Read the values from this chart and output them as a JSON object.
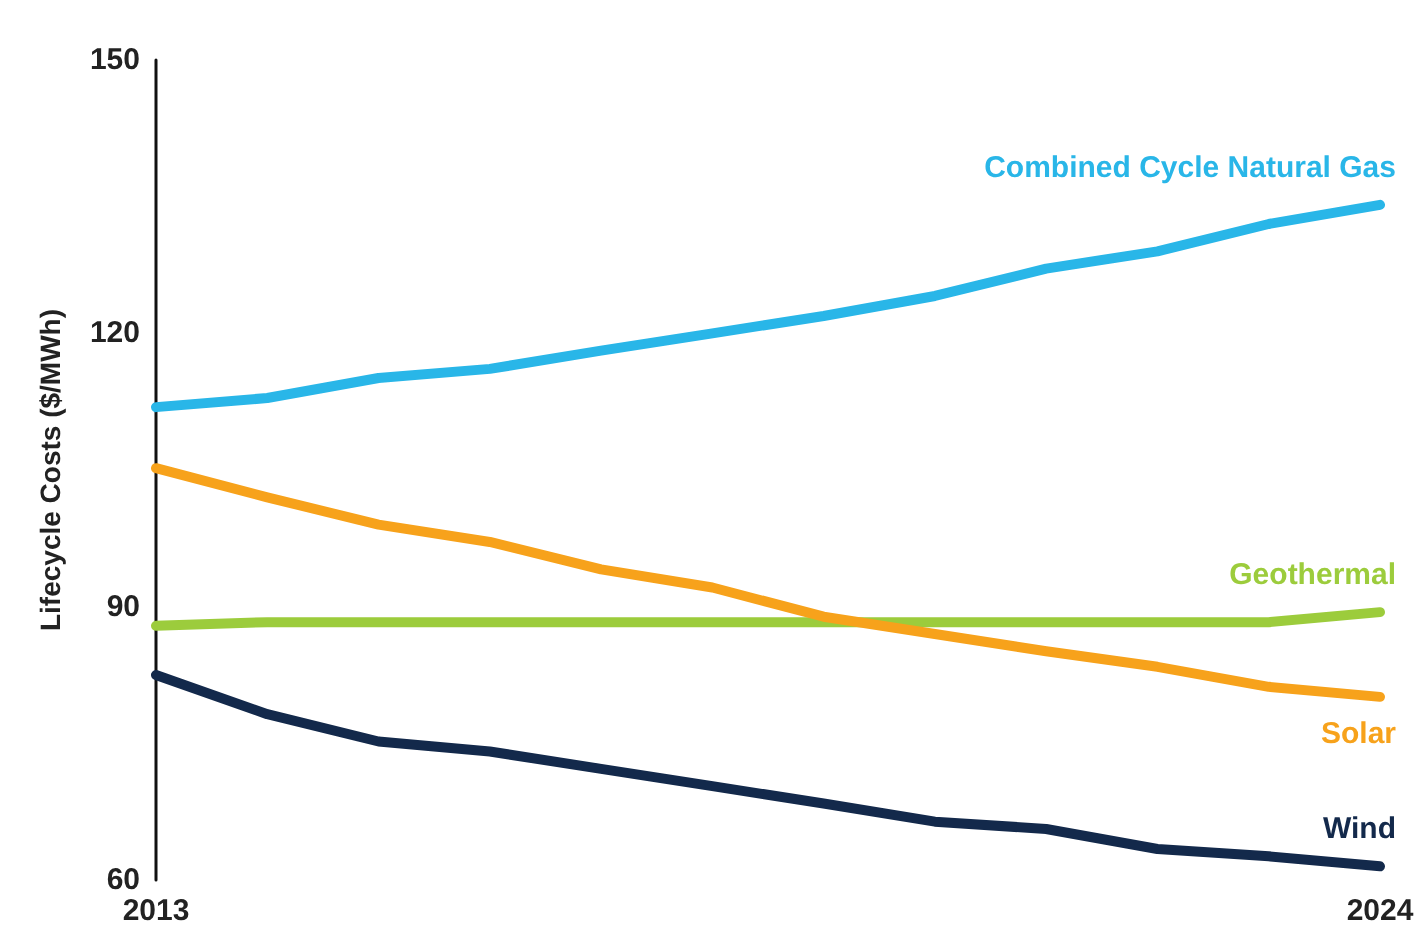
{
  "chart_data": {
    "type": "line",
    "ylabel": "Lifecycle Costs ($/MWh)",
    "x": [
      2013,
      2014,
      2015,
      2016,
      2017,
      2018,
      2019,
      2020,
      2021,
      2022,
      2023,
      2024
    ],
    "xlim": [
      2013,
      2024
    ],
    "xticks": [
      2013,
      2024
    ],
    "ylim": [
      60,
      150
    ],
    "yticks": [
      60,
      90,
      120,
      150
    ],
    "grid": false,
    "legend": false,
    "marker": "none",
    "line_style": "solid",
    "series": [
      {
        "name": "Combined Cycle Natural Gas",
        "color": "#29b6e8",
        "values": [
          111.9,
          112.9,
          115.1,
          116.1,
          118.1,
          120,
          121.9,
          124.1,
          127.1,
          129,
          132,
          134.1
        ]
      },
      {
        "name": "Geothermal",
        "color": "#9ccc3c",
        "values": [
          87.9,
          88.3,
          88.3,
          88.3,
          88.3,
          88.3,
          88.3,
          88.3,
          88.3,
          88.3,
          88.3,
          89.4
        ]
      },
      {
        "name": "Solar",
        "color": "#f7a21b",
        "values": [
          105.2,
          102,
          99,
          97.1,
          94.1,
          92.1,
          88.9,
          87,
          85.1,
          83.4,
          81.2,
          80.1
        ]
      },
      {
        "name": "Wind",
        "color": "#13294b",
        "values": [
          82.5,
          78.2,
          75.2,
          74.1,
          72.2,
          70.3,
          68.4,
          66.4,
          65.6,
          63.4,
          62.6,
          61.5
        ]
      }
    ]
  }
}
